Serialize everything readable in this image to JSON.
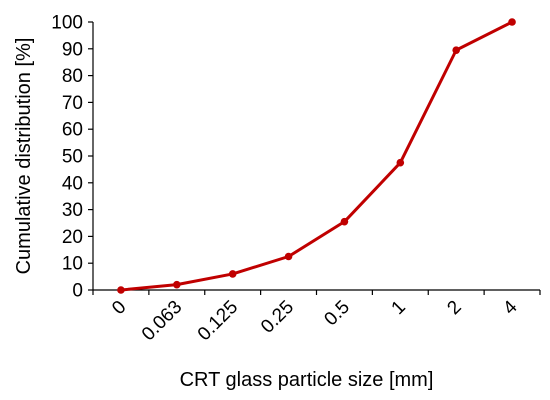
{
  "chart_data": {
    "type": "line",
    "title": "",
    "xlabel": "CRT glass particle size [mm]",
    "ylabel": "Cumulative distribution  [%]",
    "categories": [
      "0",
      "0.063",
      "0.125",
      "0.25",
      "0.5",
      "1",
      "2",
      "4"
    ],
    "series": [
      {
        "values": [
          0,
          2,
          6,
          12.5,
          25.5,
          47.5,
          89.5,
          100
        ],
        "color": "#C00000"
      }
    ],
    "ylim": [
      0,
      100
    ],
    "yticks": [
      "0",
      "10",
      "20",
      "30",
      "40",
      "50",
      "60",
      "70",
      "80",
      "90",
      "100"
    ],
    "grid": false,
    "legend": "none"
  }
}
